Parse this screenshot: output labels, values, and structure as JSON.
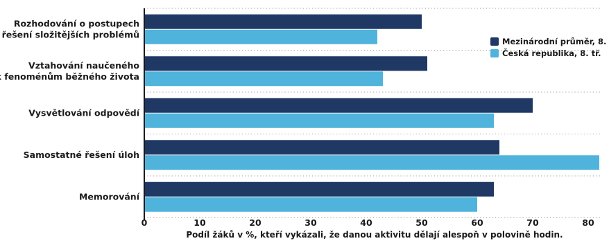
{
  "chart_data": {
    "type": "bar",
    "orientation": "horizontal",
    "categories": [
      [
        "Rozhodování o postupech",
        "řešení složitějších problémů"
      ],
      [
        "Vztahování naučeného",
        "k fenoménům běžného života"
      ],
      [
        "Vysvětlování odpovědí"
      ],
      [
        "Samostatné řešení úloh"
      ],
      [
        "Memorování"
      ]
    ],
    "series": [
      {
        "name": "Mezinárodní průměr, 8. tř.",
        "color": "#1f3864",
        "values": [
          50,
          51,
          70,
          64,
          63
        ]
      },
      {
        "name": "Česká republika, 8. tř.",
        "color": "#4fb3dc",
        "values": [
          42,
          43,
          63,
          82,
          60
        ]
      }
    ],
    "xlabel": "Podíl žáků v %, kteří vykázali, že danou aktivitu dělají alespoň v polovině hodin.",
    "ylabel": "",
    "xlim": [
      0,
      82
    ],
    "xticks": [
      0,
      10,
      20,
      30,
      40,
      50,
      60,
      70,
      80
    ],
    "grid": "dotted horizontal separators",
    "legend_position": "right"
  }
}
